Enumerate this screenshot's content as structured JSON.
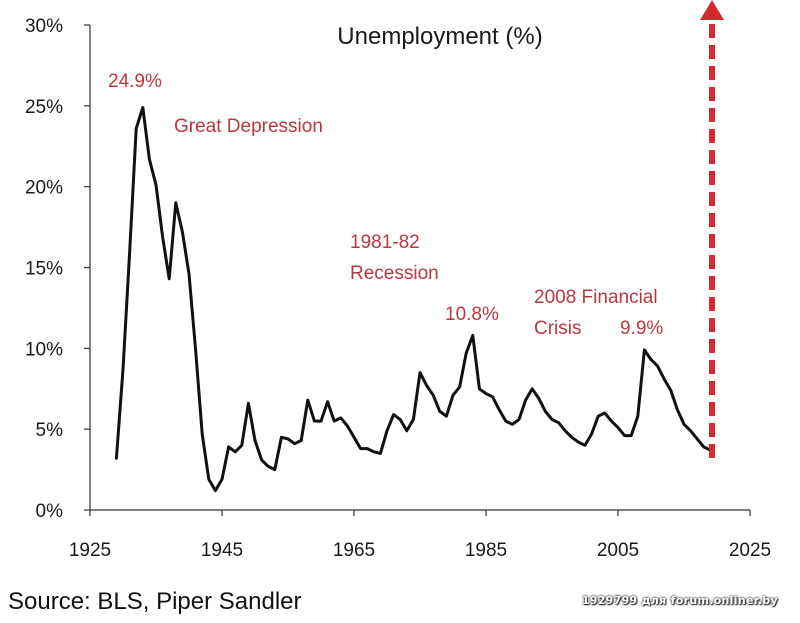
{
  "chart_data": {
    "type": "line",
    "title": "Unemployment (%)",
    "xlim": [
      1925,
      2025
    ],
    "ylim": [
      0,
      30
    ],
    "x_ticks": [
      "1925",
      "1945",
      "1965",
      "1985",
      "2005",
      "2025"
    ],
    "y_ticks": [
      "0%",
      "5%",
      "10%",
      "15%",
      "20%",
      "25%",
      "30%"
    ],
    "grid": false,
    "series": [
      {
        "name": "",
        "x": [
          1929,
          1930,
          1931,
          1932,
          1933,
          1934,
          1935,
          1936,
          1937,
          1938,
          1939,
          1940,
          1941,
          1942,
          1943,
          1944,
          1945,
          1946,
          1947,
          1948,
          1949,
          1950,
          1951,
          1952,
          1953,
          1954,
          1955,
          1956,
          1957,
          1958,
          1959,
          1960,
          1961,
          1962,
          1963,
          1964,
          1965,
          1966,
          1967,
          1968,
          1969,
          1970,
          1971,
          1972,
          1973,
          1974,
          1975,
          1976,
          1977,
          1978,
          1979,
          1980,
          1981,
          1982,
          1983,
          1984,
          1985,
          1986,
          1987,
          1988,
          1989,
          1990,
          1991,
          1992,
          1993,
          1994,
          1995,
          1996,
          1997,
          1998,
          1999,
          2000,
          2001,
          2002,
          2003,
          2004,
          2005,
          2006,
          2007,
          2008,
          2009,
          2010,
          2011,
          2012,
          2013,
          2014,
          2015,
          2016,
          2017,
          2018,
          2019
        ],
        "values": [
          3.2,
          8.7,
          15.9,
          23.6,
          24.9,
          21.7,
          20.1,
          16.9,
          14.3,
          19.0,
          17.2,
          14.6,
          9.9,
          4.7,
          1.9,
          1.2,
          1.9,
          3.9,
          3.6,
          4.0,
          6.6,
          4.3,
          3.1,
          2.7,
          2.5,
          4.5,
          4.4,
          4.1,
          4.3,
          6.8,
          5.5,
          5.5,
          6.7,
          5.5,
          5.7,
          5.2,
          4.5,
          3.8,
          3.8,
          3.6,
          3.5,
          4.9,
          5.9,
          5.6,
          4.9,
          5.6,
          8.5,
          7.7,
          7.1,
          6.1,
          5.8,
          7.1,
          7.6,
          9.7,
          10.8,
          7.5,
          7.2,
          7.0,
          6.2,
          5.5,
          5.3,
          5.6,
          6.8,
          7.5,
          6.9,
          6.1,
          5.6,
          5.4,
          4.9,
          4.5,
          4.2,
          4.0,
          4.7,
          5.8,
          6.0,
          5.5,
          5.1,
          4.6,
          4.6,
          5.8,
          9.9,
          9.3,
          8.9,
          8.1,
          7.4,
          6.2,
          5.3,
          4.9,
          4.4,
          3.9,
          3.7
        ]
      }
    ],
    "annotations": [
      {
        "text": "24.9%",
        "x": 1933,
        "y": 24.9
      },
      {
        "text": "Great Depression"
      },
      {
        "text": "1981-82"
      },
      {
        "text": "Recession"
      },
      {
        "text": "10.8%",
        "x": 1982,
        "y": 10.8
      },
      {
        "text": "2008 Financial"
      },
      {
        "text": "Crisis"
      },
      {
        "text": "9.9%",
        "x": 2009,
        "y": 9.9
      }
    ],
    "colors": {
      "line": "#111111",
      "annotation": "#b8383b",
      "arrow": "#d42a2f"
    }
  },
  "source": "Source: BLS, Piper Sandler",
  "watermark": "1929799 для forum.onliner.by"
}
